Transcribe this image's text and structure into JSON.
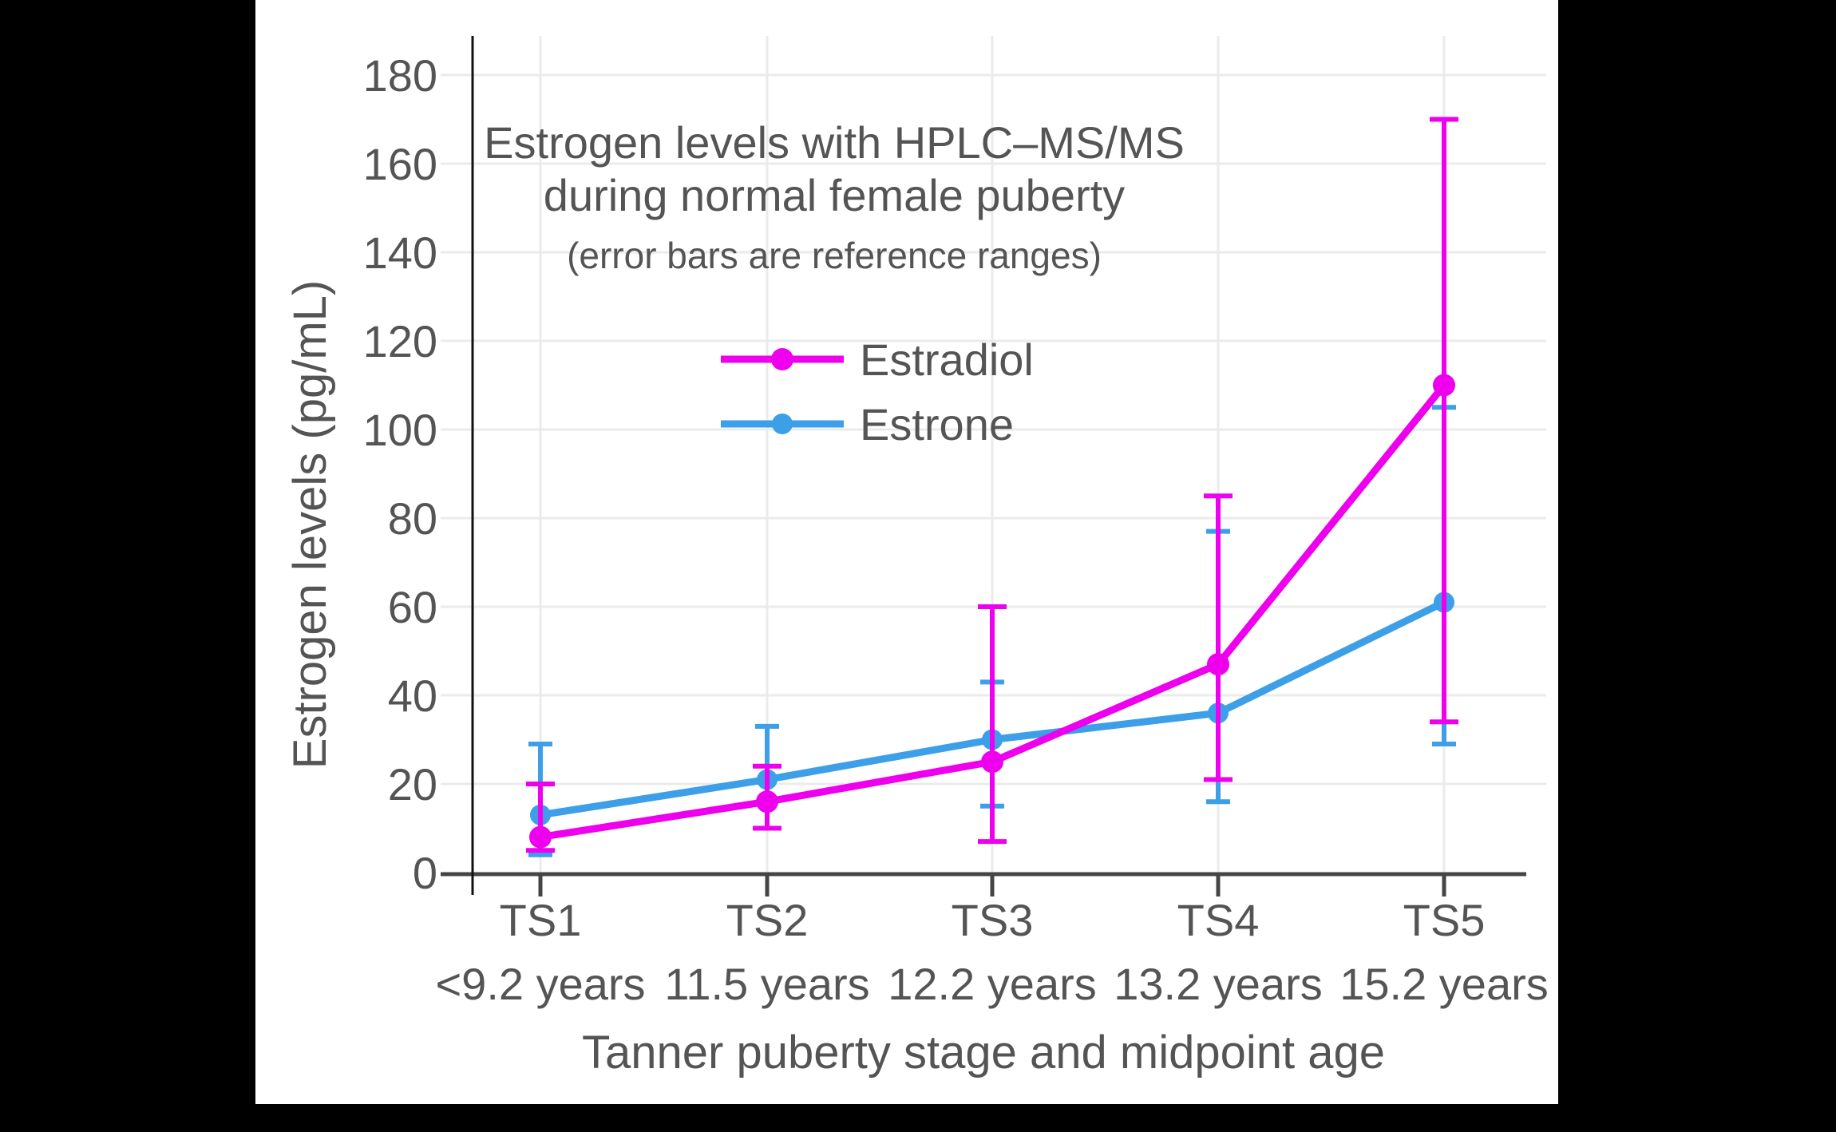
{
  "chart_data": {
    "type": "line",
    "title_line1": "Estrogen levels with HPLC–MS/MS",
    "title_line2": "during normal female puberty",
    "subtitle": "(error bars are reference ranges)",
    "xlabel": "Tanner puberty stage and midpoint age",
    "ylabel": "Estrogen levels (pg/mL)",
    "categories": [
      "TS1",
      "TS2",
      "TS3",
      "TS4",
      "TS5"
    ],
    "category_sublabels": [
      "<9.2 years",
      "11.5 years",
      "12.2 years",
      "13.2 years",
      "15.2 years"
    ],
    "y_ticks": [
      0,
      20,
      40,
      60,
      80,
      100,
      120,
      140,
      160,
      180
    ],
    "ylim": [
      0,
      188
    ],
    "grid": true,
    "legend_position": "inside upper-center",
    "error_bars_meaning": "reference ranges",
    "series": [
      {
        "name": "Estradiol",
        "color": "#EE00EE",
        "values": [
          8,
          16,
          25,
          47,
          110
        ],
        "err_low": [
          5,
          10,
          7,
          21,
          34
        ],
        "err_high": [
          20,
          24,
          60,
          85,
          170
        ]
      },
      {
        "name": "Estrone",
        "color": "#3C9FE8",
        "values": [
          13,
          21,
          30,
          36,
          61
        ],
        "err_low": [
          4,
          10,
          15,
          16,
          29
        ],
        "err_high": [
          29,
          33,
          43,
          77,
          105
        ]
      }
    ]
  },
  "colors": {
    "letterbox": "#000000",
    "canvas": "#ffffff",
    "grid": "#ebebeb",
    "axis_line": "#444444",
    "y_spine": "#111111",
    "text": "#545454"
  }
}
